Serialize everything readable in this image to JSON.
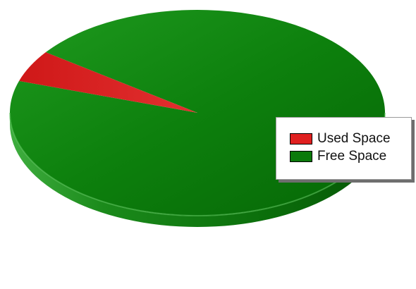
{
  "chart_data": {
    "type": "pie",
    "title": "",
    "categories": [
      "Used Space",
      "Free Space"
    ],
    "values": [
      5,
      95
    ],
    "unit": "%",
    "colors": [
      "#e02020",
      "#0b7a0b"
    ],
    "legend_position": "right",
    "three_d": true
  },
  "legend": {
    "items": [
      {
        "label": "Used Space",
        "color": "#e02020"
      },
      {
        "label": "Free Space",
        "color": "#0b7a0b"
      }
    ]
  }
}
